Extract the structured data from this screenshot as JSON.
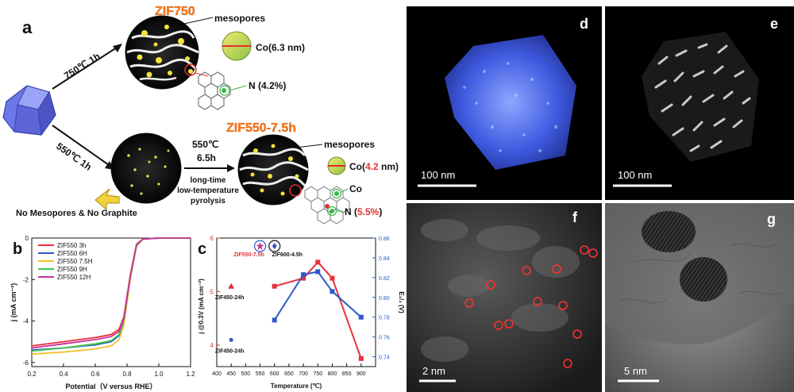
{
  "panel_a": {
    "letter": "a",
    "top_title": "ZIF750",
    "top_arrow_label": "750℃ 1h",
    "top_mesopores": "mesopores",
    "top_co": "Co(6.3 nm)",
    "top_n": "N (4.2%)",
    "bottom_arrow_label": "550℃ 1h",
    "no_mesopores": "No Mesopores & No Graphite",
    "step_temp": "550℃",
    "step_time": "6.5h",
    "step_desc_1": "long-time",
    "step_desc_2": "low-temperature",
    "step_desc_3": "pyrolysis",
    "bottom_title": "ZIF550-7.5h",
    "bottom_mesopores": "mesopores",
    "bottom_co_prefix": "Co(",
    "bottom_co_value": "4.2",
    "bottom_co_suffix": " nm)",
    "bottom_co_label": "Co",
    "bottom_n_prefix": "N (",
    "bottom_n_value": "5.5%",
    "bottom_n_suffix": ")"
  },
  "panel_b": {
    "letter": "b",
    "chart_data": {
      "type": "line",
      "xlabel": "Potential（V versus RHE）",
      "ylabel": "j (mA cm⁻²)",
      "xlim": [
        0.2,
        1.2
      ],
      "ylim": [
        -6.2,
        0
      ],
      "xticks": [
        "0.2",
        "0.4",
        "0.6",
        "0.8",
        "1.0",
        "1.2"
      ],
      "yticks": [
        "0",
        "-2",
        "-4",
        "-6"
      ],
      "legend_position": "top-left",
      "series": [
        {
          "name": "ZIF550 3h",
          "color": "#e8303a",
          "x": [
            0.2,
            0.4,
            0.6,
            0.7,
            0.75,
            0.78,
            0.82,
            0.86,
            0.9,
            1.0,
            1.2
          ],
          "y": [
            -5.2,
            -5.0,
            -4.8,
            -4.65,
            -4.4,
            -3.8,
            -1.8,
            -0.3,
            -0.05,
            0,
            0
          ]
        },
        {
          "name": "ZIF550 6H",
          "color": "#2f58c8",
          "x": [
            0.2,
            0.4,
            0.6,
            0.7,
            0.75,
            0.78,
            0.82,
            0.86,
            0.9,
            1.0,
            1.2
          ],
          "y": [
            -5.4,
            -5.3,
            -5.15,
            -5.0,
            -4.7,
            -4.0,
            -1.9,
            -0.35,
            -0.05,
            0,
            0
          ]
        },
        {
          "name": "ZIF550 7.5H",
          "color": "#f2c230",
          "x": [
            0.2,
            0.4,
            0.6,
            0.7,
            0.75,
            0.78,
            0.82,
            0.86,
            0.9,
            1.0,
            1.2
          ],
          "y": [
            -5.6,
            -5.5,
            -5.35,
            -5.2,
            -4.9,
            -4.2,
            -2.0,
            -0.4,
            -0.05,
            0,
            0
          ]
        },
        {
          "name": "ZIF550 9H",
          "color": "#3fc64a",
          "x": [
            0.2,
            0.4,
            0.6,
            0.7,
            0.75,
            0.78,
            0.82,
            0.86,
            0.9,
            1.0,
            1.2
          ],
          "y": [
            -5.45,
            -5.3,
            -5.1,
            -4.95,
            -4.65,
            -3.95,
            -1.9,
            -0.35,
            -0.05,
            0,
            0
          ]
        },
        {
          "name": "ZIF550 12H",
          "color": "#c8309a",
          "x": [
            0.2,
            0.4,
            0.6,
            0.7,
            0.75,
            0.78,
            0.82,
            0.86,
            0.9,
            1.0,
            1.2
          ],
          "y": [
            -5.3,
            -5.1,
            -4.9,
            -4.75,
            -4.5,
            -3.85,
            -1.85,
            -0.3,
            -0.05,
            0,
            0
          ]
        }
      ]
    }
  },
  "panel_c": {
    "letter": "c",
    "chart_data": {
      "type": "scatter",
      "xlabel": "Temperature (℃)",
      "ylabel_left": "j @0.3V (mA cm⁻²)",
      "ylabel_right": "E₁/₂ (V)",
      "xlim": [
        400,
        950
      ],
      "ylim_left": [
        3.6,
        6.0
      ],
      "ylim_right": [
        0.73,
        0.86
      ],
      "xticks": [
        "400",
        "450",
        "500",
        "550",
        "600",
        "650",
        "700",
        "750",
        "800",
        "850",
        "900"
      ],
      "yticks_left": [
        "4",
        "5",
        "6"
      ],
      "yticks_right": [
        "0.74",
        "0.76",
        "0.78",
        "0.80",
        "0.82",
        "0.84",
        "0.86"
      ],
      "series": [
        {
          "name": "j",
          "color": "#e8303a",
          "axis": "left",
          "x": [
            600,
            700,
            750,
            800,
            900
          ],
          "y": [
            5.1,
            5.25,
            5.55,
            5.25,
            3.75
          ]
        },
        {
          "name": "E1/2",
          "color": "#2f58c8",
          "axis": "right",
          "x": [
            600,
            700,
            750,
            800,
            900
          ],
          "y": [
            0.777,
            0.823,
            0.826,
            0.806,
            0.78
          ]
        }
      ],
      "points": [
        {
          "label": "ZIF450-24h",
          "x": 450,
          "y": 5.1,
          "axis": "left",
          "color": "#e8303a",
          "marker": "triangle"
        },
        {
          "label": "ZIF450-24h",
          "x": 450,
          "y": 0.757,
          "axis": "right",
          "color": "#2f58c8",
          "marker": "circle"
        },
        {
          "label": "ZIF550-7.5h",
          "x": 550,
          "y": 5.85,
          "axis": "left",
          "color": "#e8303a",
          "marker": "star"
        },
        {
          "label": "ZIF600-4.5h",
          "x": 600,
          "y": 5.85,
          "axis": "left",
          "color": "#2f58c8",
          "marker": "diamond"
        }
      ]
    }
  },
  "panel_d": {
    "letter": "d",
    "scale": "100 nm"
  },
  "panel_e": {
    "letter": "e",
    "scale": "100 nm"
  },
  "panel_f": {
    "letter": "f",
    "scale": "2 nm"
  },
  "panel_g": {
    "letter": "g",
    "scale": "5 nm"
  }
}
